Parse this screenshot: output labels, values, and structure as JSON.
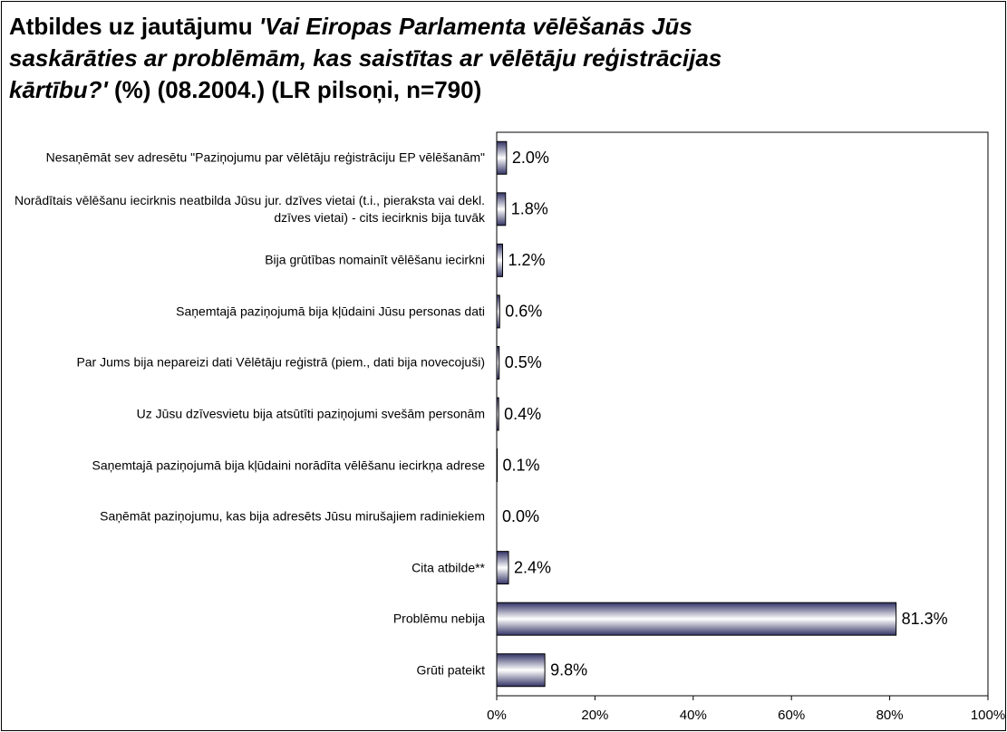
{
  "chart_data": {
    "type": "bar",
    "orientation": "horizontal",
    "title": [
      "Atbildes uz jautājumu ",
      "'Vai Eiropas Parlamenta vēlēšanās Jūs saskārāties ar problēmām, kas saistītas ar vēlētāju reģistrācijas kārtību?'",
      " (%) (08.2004.) (LR pilsoņi, n=790)"
    ],
    "categories": [
      "Nesaņēmāt sev adresētu \"Paziņojumu par vēlētāju reģistrāciju EP vēlēšanām\"",
      "Norādītais vēlēšanu iecirknis neatbilda Jūsu jur. dzīves vietai (t.i., pieraksta vai dekl. dzīves vietai) - cits iecirknis bija tuvāk",
      "Bija grūtības nomainīt vēlēšanu iecirkni",
      "Saņemtajā paziņojumā bija kļūdaini Jūsu personas dati",
      "Par Jums bija nepareizi dati Vēlētāju reģistrā (piem., dati bija novecojuši)",
      "Uz Jūsu dzīvesvietu bija atsūtīti paziņojumi svešām personām",
      "Saņemtajā paziņojumā bija kļūdaini norādīta vēlēšanu iecirkņa adrese",
      "Saņēmāt paziņojumu, kas bija adresēts Jūsu mirušajiem radiniekiem",
      "Cita atbilde**",
      "Problēmu nebija",
      "Grūti pateikt"
    ],
    "values": [
      2.0,
      1.8,
      1.2,
      0.6,
      0.5,
      0.4,
      0.1,
      0.0,
      2.4,
      81.3,
      9.8
    ],
    "value_labels": [
      "2.0%",
      "1.8%",
      "1.2%",
      "0.6%",
      "0.5%",
      "0.4%",
      "0.1%",
      "0.0%",
      "2.4%",
      "81.3%",
      "9.8%"
    ],
    "color": "#333366",
    "xlim": [
      0,
      100
    ],
    "xticks": [
      {
        "value": 0,
        "label": "0%"
      },
      {
        "value": 20,
        "label": "20%"
      },
      {
        "value": 40,
        "label": "40%"
      },
      {
        "value": 60,
        "label": "60%"
      },
      {
        "value": 80,
        "label": "80%"
      },
      {
        "value": 100,
        "label": "100%"
      }
    ]
  }
}
